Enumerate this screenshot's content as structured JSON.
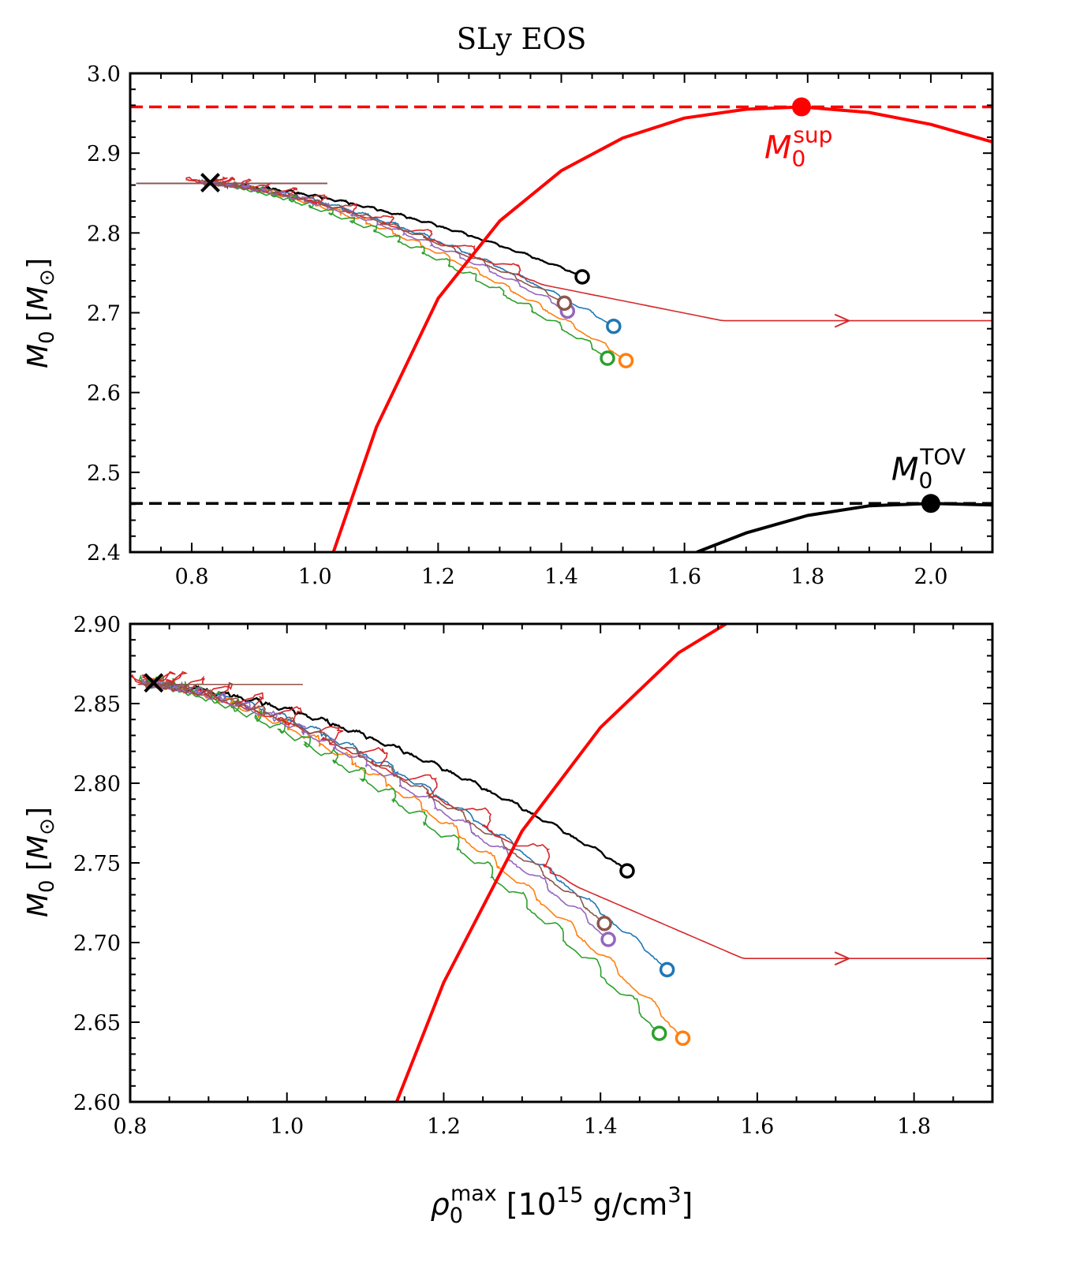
{
  "figure_title": "SLy EOS",
  "colors": {
    "blue": "#1f77b4",
    "orange": "#ff7f0e",
    "green": "#2ca02c",
    "red": "#d62728",
    "purple": "#9467bd",
    "brown": "#8c564b",
    "black": "#000000",
    "bright_red": "#ff0000"
  },
  "chart_data": [
    {
      "type": "line",
      "panel": "top",
      "ylabel": "M0 [M⊙]",
      "xlabel": "",
      "xlim": [
        0.7,
        2.1
      ],
      "ylim": [
        2.4,
        3.0
      ],
      "xticks": [
        "0.8",
        "1.0",
        "1.2",
        "1.4",
        "1.6",
        "1.8",
        "2.0"
      ],
      "yticks": [
        "2.4",
        "2.5",
        "2.6",
        "2.7",
        "2.8",
        "2.9",
        "3.0"
      ],
      "hlines": [
        {
          "y": 2.958,
          "color": "bright_red",
          "style": "dashed"
        },
        {
          "y": 2.461,
          "color": "black",
          "style": "dashed"
        }
      ],
      "curves": [
        {
          "color": "bright_red",
          "x": [
            1.03,
            1.1,
            1.2,
            1.3,
            1.4,
            1.5,
            1.6,
            1.7,
            1.79,
            1.9,
            2.0,
            2.1
          ],
          "y": [
            2.4,
            2.557,
            2.718,
            2.815,
            2.878,
            2.919,
            2.944,
            2.955,
            2.958,
            2.951,
            2.936,
            2.914
          ]
        },
        {
          "color": "black",
          "x": [
            1.62,
            1.7,
            1.8,
            1.9,
            2.0,
            2.1
          ],
          "y": [
            2.4,
            2.424,
            2.446,
            2.458,
            2.461,
            2.459
          ]
        }
      ],
      "annotations": [
        {
          "name": "M0^sup",
          "base": "M",
          "sub": "0",
          "sup": "sup",
          "x": 1.79,
          "y": 2.958,
          "color": "bright_red"
        },
        {
          "name": "M0^TOV",
          "base": "M",
          "sub": "0",
          "sup": "TOV",
          "x": 2.0,
          "y": 2.461,
          "color": "black"
        }
      ],
      "series": [
        {
          "color": "black",
          "start": [
            0.82,
            2.86
          ],
          "end": [
            1.434,
            2.745
          ]
        },
        {
          "color": "blue",
          "start": [
            0.82,
            2.86
          ],
          "end": [
            1.485,
            2.683
          ]
        },
        {
          "color": "orange",
          "start": [
            0.82,
            2.86
          ],
          "end": [
            1.505,
            2.64
          ]
        },
        {
          "color": "green",
          "start": [
            0.82,
            2.86
          ],
          "end": [
            1.475,
            2.643
          ]
        },
        {
          "color": "red",
          "start": [
            0.82,
            2.86
          ],
          "end": [
            2.1,
            2.69
          ]
        },
        {
          "color": "purple",
          "start": [
            0.82,
            2.86
          ],
          "end": [
            1.41,
            2.702
          ]
        },
        {
          "color": "brown",
          "start": [
            0.82,
            2.86
          ],
          "end": [
            1.405,
            2.712
          ]
        }
      ],
      "initial_point": {
        "x": 0.83,
        "y": 2.863
      }
    },
    {
      "type": "line",
      "panel": "bottom",
      "ylabel": "M0 [M⊙]",
      "xlabel": "ρ0max [10^15 g/cm3]",
      "xlim": [
        0.8,
        1.9
      ],
      "ylim": [
        2.6,
        2.9
      ],
      "xticks": [
        "0.8",
        "1.0",
        "1.2",
        "1.4",
        "1.6",
        "1.8"
      ],
      "yticks": [
        "2.60",
        "2.65",
        "2.70",
        "2.75",
        "2.80",
        "2.85",
        "2.90"
      ],
      "curves": [
        {
          "color": "bright_red",
          "x": [
            1.14,
            1.2,
            1.3,
            1.4,
            1.5,
            1.56
          ],
          "y": [
            2.6,
            2.675,
            2.77,
            2.835,
            2.882,
            2.9
          ]
        }
      ],
      "series": [
        {
          "color": "black",
          "start": [
            0.82,
            2.86
          ],
          "end": [
            1.434,
            2.745
          ]
        },
        {
          "color": "blue",
          "start": [
            0.82,
            2.86
          ],
          "end": [
            1.485,
            2.683
          ]
        },
        {
          "color": "orange",
          "start": [
            0.82,
            2.86
          ],
          "end": [
            1.505,
            2.64
          ]
        },
        {
          "color": "green",
          "start": [
            0.82,
            2.86
          ],
          "end": [
            1.475,
            2.643
          ]
        },
        {
          "color": "red",
          "start": [
            0.82,
            2.86
          ],
          "end": [
            1.9,
            2.69
          ]
        },
        {
          "color": "purple",
          "start": [
            0.82,
            2.86
          ],
          "end": [
            1.41,
            2.702
          ]
        },
        {
          "color": "brown",
          "start": [
            0.82,
            2.86
          ],
          "end": [
            1.405,
            2.712
          ]
        }
      ],
      "initial_point": {
        "x": 0.83,
        "y": 2.863
      }
    }
  ]
}
